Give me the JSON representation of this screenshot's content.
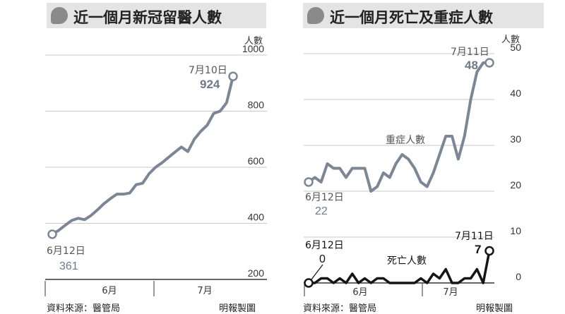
{
  "left_panel": {
    "title": "近一個月新冠留醫人數",
    "source": "資料來源：醫管局",
    "credit": "明報製圖"
  },
  "right_panel": {
    "title": "近一個月死亡及重症人數",
    "source": "資料來源：醫管局",
    "credit": "明報製圖"
  },
  "colors": {
    "severe_line": "#7b8696",
    "death_line": "#151515",
    "grid": "#c8c8c8",
    "title_bg": "#e4e4e4"
  },
  "chart_data": [
    {
      "type": "line",
      "title": "近一個月新冠留醫人數",
      "ylabel": "人數",
      "ylim": [
        200,
        1000
      ],
      "yticks": [
        "200",
        "400",
        "600",
        "800",
        "1000"
      ],
      "month_labels": [
        "6月",
        "7月"
      ],
      "series": [
        {
          "x": [
            "6月12日",
            "6月13日",
            "6月14日",
            "6月15日",
            "6月16日",
            "6月17日",
            "6月18日",
            "6月19日",
            "6月20日",
            "6月21日",
            "6月22日",
            "6月23日",
            "6月24日",
            "6月25日",
            "6月26日",
            "6月27日",
            "6月28日",
            "6月29日",
            "6月30日",
            "7月1日",
            "7月2日",
            "7月3日",
            "7月4日",
            "7月5日",
            "7月6日",
            "7月7日",
            "7月8日",
            "7月9日",
            "7月10日"
          ],
          "values": [
            361,
            375,
            393,
            410,
            418,
            413,
            428,
            448,
            470,
            488,
            504,
            504,
            508,
            538,
            543,
            577,
            600,
            616,
            635,
            654,
            672,
            656,
            700,
            728,
            750,
            792,
            800,
            830,
            924
          ]
        }
      ],
      "annotations": {
        "start_date": "6月12日",
        "start_value": "361",
        "end_date": "7月10日",
        "end_value": "924"
      }
    },
    {
      "type": "line",
      "title": "近一個月死亡及重症人數",
      "ylabel": "人數",
      "ylim": [
        0,
        50
      ],
      "yticks": [
        "0",
        "10",
        "20",
        "30",
        "40",
        "50"
      ],
      "month_labels": [
        "6月",
        "7月"
      ],
      "series": [
        {
          "name": "重症人數",
          "x": [
            "6月12日",
            "6月13日",
            "6月14日",
            "6月15日",
            "6月16日",
            "6月17日",
            "6月18日",
            "6月19日",
            "6月20日",
            "6月21日",
            "6月22日",
            "6月23日",
            "6月24日",
            "6月25日",
            "6月26日",
            "6月27日",
            "6月28日",
            "6月29日",
            "6月30日",
            "7月1日",
            "7月2日",
            "7月3日",
            "7月4日",
            "7月5日",
            "7月6日",
            "7月7日",
            "7月8日",
            "7月9日",
            "7月10日",
            "7月11日"
          ],
          "values": [
            22,
            23,
            22,
            26,
            25,
            25,
            23,
            25,
            25,
            25,
            20,
            21,
            24,
            23,
            26,
            28,
            27,
            25,
            22,
            21,
            24,
            28,
            32,
            32,
            27,
            32,
            40,
            46,
            48,
            48
          ]
        },
        {
          "name": "死亡人數",
          "x": [
            "6月12日",
            "6月13日",
            "6月14日",
            "6月15日",
            "6月16日",
            "6月17日",
            "6月18日",
            "6月19日",
            "6月20日",
            "6月21日",
            "6月22日",
            "6月23日",
            "6月24日",
            "6月25日",
            "6月26日",
            "6月27日",
            "6月28日",
            "6月29日",
            "6月30日",
            "7月1日",
            "7月2日",
            "7月3日",
            "7月4日",
            "7月5日",
            "7月6日",
            "7月7日",
            "7月8日",
            "7月9日",
            "7月10日",
            "7月11日"
          ],
          "values": [
            0,
            0,
            1,
            1,
            0,
            1,
            0,
            2,
            0,
            1,
            0,
            1,
            1,
            0,
            0,
            0,
            0,
            0,
            1,
            0,
            2,
            1,
            3,
            0,
            0,
            1,
            1,
            3,
            0,
            7
          ]
        }
      ],
      "annotations": {
        "severe_start_date": "6月12日",
        "severe_start_value": "22",
        "severe_end_date": "7月11日",
        "severe_end_value": "48",
        "death_start_date": "6月12日",
        "death_start_value": "0",
        "death_end_date": "7月11日",
        "death_end_value": "7"
      }
    }
  ]
}
